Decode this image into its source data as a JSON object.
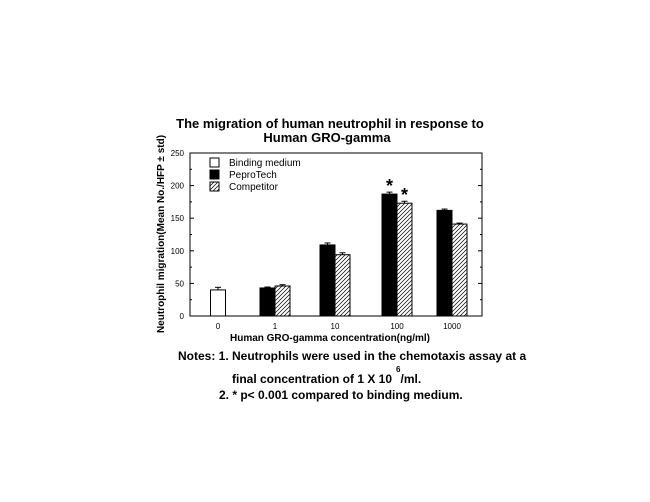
{
  "chart_data": {
    "type": "bar",
    "title": [
      "The migration of human neutrophil in response to",
      "Human GRO-gamma"
    ],
    "xlabel": "Human GRO-gamma concentration(ng/ml)",
    "ylabel": "Neutrophil migration(Mean No./HFP ± std)",
    "ylim": [
      0,
      250
    ],
    "yticks": [
      0,
      50,
      100,
      150,
      200,
      250
    ],
    "categories": [
      "0",
      "1",
      "10",
      "100",
      "1000"
    ],
    "legend_placement": "top-left",
    "series": [
      {
        "name": "Binding medium",
        "pattern": "white",
        "values": [
          40,
          null,
          null,
          null,
          null
        ],
        "errors": [
          4,
          null,
          null,
          null,
          null
        ]
      },
      {
        "name": "PeproTech",
        "pattern": "black",
        "values": [
          null,
          43,
          109,
          187,
          162
        ],
        "errors": [
          null,
          1.5,
          3,
          3,
          2
        ]
      },
      {
        "name": "Competitor",
        "pattern": "hatched",
        "values": [
          null,
          46,
          94,
          173,
          141
        ],
        "errors": [
          null,
          2,
          3,
          3,
          1.5
        ]
      }
    ],
    "annotations": [
      {
        "text": "*",
        "category": "100",
        "series": "PeproTech"
      },
      {
        "text": "*",
        "category": "100",
        "series": "Competitor"
      }
    ]
  },
  "notes": {
    "line1": "Notes: 1. Neutrophils were used in the chemotaxis assay at a",
    "line2_a": "final concentration of 1 X 10",
    "line2_sup": "6",
    "line2_b": "/ml.",
    "line3": "2. * p< 0.001 compared to binding medium."
  }
}
